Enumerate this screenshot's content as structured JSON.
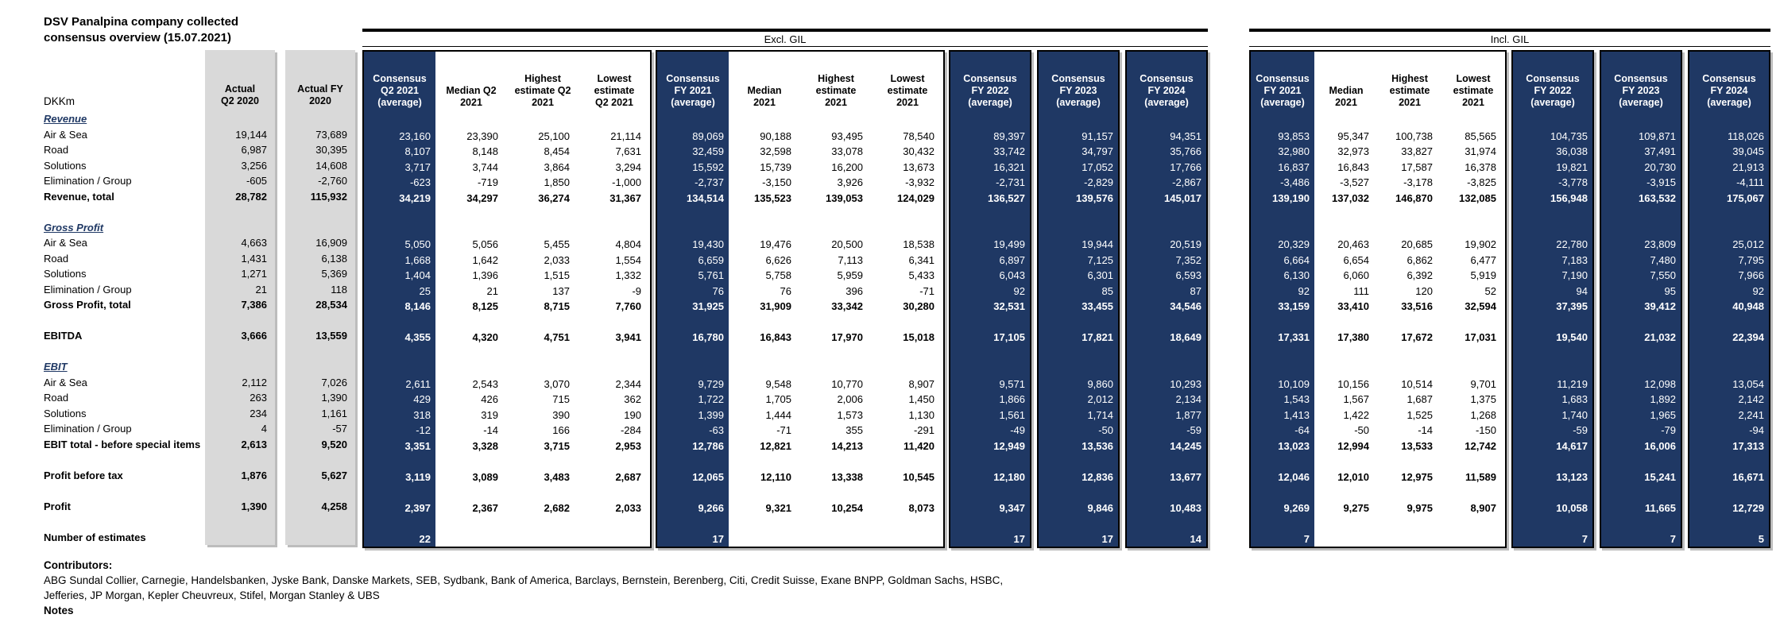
{
  "title": [
    "DSV Panalpina company collected",
    "consensus overview (15.07.2021)"
  ],
  "unit_label": "DKKm",
  "sections": {
    "excl": "Excl. GIL",
    "incl": "Incl. GIL"
  },
  "colors": {
    "navy": "#1f3864",
    "grey": "#d9d9d9"
  },
  "columns": [
    {
      "id": "actual-q2-2020",
      "header": [
        "Actual",
        "Q2 2020"
      ]
    },
    {
      "id": "actual-fy-2020",
      "header": [
        "Actual FY",
        "2020"
      ]
    },
    {
      "id": "excl-consensus-q2-2021",
      "header": [
        "Consensus",
        "Q2 2021",
        "(average)"
      ]
    },
    {
      "id": "excl-median-q2-2021",
      "header": [
        "Median Q2",
        "2021"
      ]
    },
    {
      "id": "excl-highest-estimate-q2-2021",
      "header": [
        "Highest",
        "estimate Q2",
        "2021"
      ]
    },
    {
      "id": "excl-lowest-estimate-q2-2021",
      "header": [
        "Lowest",
        "estimate",
        "Q2 2021"
      ]
    },
    {
      "id": "excl-consensus-fy-2021",
      "header": [
        "Consensus",
        "FY 2021",
        "(average)"
      ]
    },
    {
      "id": "excl-median-2021",
      "header": [
        "Median",
        "2021"
      ]
    },
    {
      "id": "excl-highest-estimate-2021",
      "header": [
        "Highest",
        "estimate",
        "2021"
      ]
    },
    {
      "id": "excl-lowest-estimate-2021",
      "header": [
        "Lowest",
        "estimate",
        "2021"
      ]
    },
    {
      "id": "excl-consensus-fy-2022",
      "header": [
        "Consensus",
        "FY 2022",
        "(average)"
      ]
    },
    {
      "id": "excl-consensus-fy-2023",
      "header": [
        "Consensus",
        "FY 2023",
        "(average)"
      ]
    },
    {
      "id": "excl-consensus-fy-2024",
      "header": [
        "Consensus",
        "FY 2024",
        "(average)"
      ]
    },
    {
      "id": "incl-consensus-fy-2021",
      "header": [
        "Consensus",
        "FY 2021",
        "(average)"
      ]
    },
    {
      "id": "incl-median-2021",
      "header": [
        "Median",
        "2021"
      ]
    },
    {
      "id": "incl-highest-estimate-2021",
      "header": [
        "Highest",
        "estimate",
        "2021"
      ]
    },
    {
      "id": "incl-lowest-estimate-2021",
      "header": [
        "Lowest",
        "estimate",
        "2021"
      ]
    },
    {
      "id": "incl-consensus-fy-2022",
      "header": [
        "Consensus",
        "FY 2022",
        "(average)"
      ]
    },
    {
      "id": "incl-consensus-fy-2023",
      "header": [
        "Consensus",
        "FY 2023",
        "(average)"
      ]
    },
    {
      "id": "incl-consensus-fy-2024",
      "header": [
        "Consensus",
        "FY 2024",
        "(average)"
      ]
    }
  ],
  "rows": [
    {
      "label": "Revenue",
      "type": "section",
      "values": []
    },
    {
      "label": "Air & Sea",
      "type": "data",
      "values": [
        "19,144",
        "73,689",
        "23,160",
        "23,390",
        "25,100",
        "21,114",
        "89,069",
        "90,188",
        "93,495",
        "78,540",
        "89,397",
        "91,157",
        "94,351",
        "93,853",
        "95,347",
        "100,738",
        "85,565",
        "104,735",
        "109,871",
        "118,026"
      ]
    },
    {
      "label": "Road",
      "type": "data",
      "values": [
        "6,987",
        "30,395",
        "8,107",
        "8,148",
        "8,454",
        "7,631",
        "32,459",
        "32,598",
        "33,078",
        "30,432",
        "33,742",
        "34,797",
        "35,766",
        "32,980",
        "32,973",
        "33,827",
        "31,974",
        "36,038",
        "37,491",
        "39,045"
      ]
    },
    {
      "label": "Solutions",
      "type": "data",
      "values": [
        "3,256",
        "14,608",
        "3,717",
        "3,744",
        "3,864",
        "3,294",
        "15,592",
        "15,739",
        "16,200",
        "13,673",
        "16,321",
        "17,052",
        "17,766",
        "16,837",
        "16,843",
        "17,587",
        "16,378",
        "19,821",
        "20,730",
        "21,913"
      ]
    },
    {
      "label": "Elimination / Group",
      "type": "data",
      "values": [
        "-605",
        "-2,760",
        "-623",
        "-719",
        "1,850",
        "-1,000",
        "-2,737",
        "-3,150",
        "3,926",
        "-3,932",
        "-2,731",
        "-2,829",
        "-2,867",
        "-3,486",
        "-3,527",
        "-3,178",
        "-3,825",
        "-3,778",
        "-3,915",
        "-4,111"
      ]
    },
    {
      "label": "Revenue, total",
      "type": "total",
      "values": [
        "28,782",
        "115,932",
        "34,219",
        "34,297",
        "36,274",
        "31,367",
        "134,514",
        "135,523",
        "139,053",
        "124,029",
        "136,527",
        "139,576",
        "145,017",
        "139,190",
        "137,032",
        "146,870",
        "132,085",
        "156,948",
        "163,532",
        "175,067"
      ]
    },
    {
      "label": "",
      "type": "blank",
      "values": []
    },
    {
      "label": "Gross Profit",
      "type": "section",
      "values": []
    },
    {
      "label": "Air & Sea",
      "type": "data",
      "values": [
        "4,663",
        "16,909",
        "5,050",
        "5,056",
        "5,455",
        "4,804",
        "19,430",
        "19,476",
        "20,500",
        "18,538",
        "19,499",
        "19,944",
        "20,519",
        "20,329",
        "20,463",
        "20,685",
        "19,902",
        "22,780",
        "23,809",
        "25,012"
      ]
    },
    {
      "label": "Road",
      "type": "data",
      "values": [
        "1,431",
        "6,138",
        "1,668",
        "1,642",
        "2,033",
        "1,554",
        "6,659",
        "6,626",
        "7,113",
        "6,341",
        "6,897",
        "7,125",
        "7,352",
        "6,664",
        "6,654",
        "6,862",
        "6,477",
        "7,183",
        "7,480",
        "7,795"
      ]
    },
    {
      "label": "Solutions",
      "type": "data",
      "values": [
        "1,271",
        "5,369",
        "1,404",
        "1,396",
        "1,515",
        "1,332",
        "5,761",
        "5,758",
        "5,959",
        "5,433",
        "6,043",
        "6,301",
        "6,593",
        "6,130",
        "6,060",
        "6,392",
        "5,919",
        "7,190",
        "7,550",
        "7,966"
      ]
    },
    {
      "label": "Elimination / Group",
      "type": "data",
      "values": [
        "21",
        "118",
        "25",
        "21",
        "137",
        "-9",
        "76",
        "76",
        "396",
        "-71",
        "92",
        "85",
        "87",
        "92",
        "111",
        "120",
        "52",
        "94",
        "95",
        "92"
      ]
    },
    {
      "label": "Gross Profit, total",
      "type": "total",
      "values": [
        "7,386",
        "28,534",
        "8,146",
        "8,125",
        "8,715",
        "7,760",
        "31,925",
        "31,909",
        "33,342",
        "30,280",
        "32,531",
        "33,455",
        "34,546",
        "33,159",
        "33,410",
        "33,516",
        "32,594",
        "37,395",
        "39,412",
        "40,948"
      ]
    },
    {
      "label": "",
      "type": "blank",
      "values": []
    },
    {
      "label": "EBITDA",
      "type": "total",
      "values": [
        "3,666",
        "13,559",
        "4,355",
        "4,320",
        "4,751",
        "3,941",
        "16,780",
        "16,843",
        "17,970",
        "15,018",
        "17,105",
        "17,821",
        "18,649",
        "17,331",
        "17,380",
        "17,672",
        "17,031",
        "19,540",
        "21,032",
        "22,394"
      ]
    },
    {
      "label": "",
      "type": "blank",
      "values": []
    },
    {
      "label": "EBIT",
      "type": "section",
      "values": []
    },
    {
      "label": "Air & Sea",
      "type": "data",
      "values": [
        "2,112",
        "7,026",
        "2,611",
        "2,543",
        "3,070",
        "2,344",
        "9,729",
        "9,548",
        "10,770",
        "8,907",
        "9,571",
        "9,860",
        "10,293",
        "10,109",
        "10,156",
        "10,514",
        "9,701",
        "11,219",
        "12,098",
        "13,054"
      ]
    },
    {
      "label": "Road",
      "type": "data",
      "values": [
        "263",
        "1,390",
        "429",
        "426",
        "715",
        "362",
        "1,722",
        "1,705",
        "2,006",
        "1,450",
        "1,866",
        "2,012",
        "2,134",
        "1,543",
        "1,567",
        "1,687",
        "1,375",
        "1,683",
        "1,892",
        "2,142"
      ]
    },
    {
      "label": "Solutions",
      "type": "data",
      "values": [
        "234",
        "1,161",
        "318",
        "319",
        "390",
        "190",
        "1,399",
        "1,444",
        "1,573",
        "1,130",
        "1,561",
        "1,714",
        "1,877",
        "1,413",
        "1,422",
        "1,525",
        "1,268",
        "1,740",
        "1,965",
        "2,241"
      ]
    },
    {
      "label": "Elimination / Group",
      "type": "data",
      "values": [
        "4",
        "-57",
        "-12",
        "-14",
        "166",
        "-284",
        "-63",
        "-71",
        "355",
        "-291",
        "-49",
        "-50",
        "-59",
        "-64",
        "-50",
        "-14",
        "-150",
        "-59",
        "-79",
        "-94"
      ]
    },
    {
      "label": "EBIT total - before special items",
      "type": "total",
      "values": [
        "2,613",
        "9,520",
        "3,351",
        "3,328",
        "3,715",
        "2,953",
        "12,786",
        "12,821",
        "14,213",
        "11,420",
        "12,949",
        "13,536",
        "14,245",
        "13,023",
        "12,994",
        "13,533",
        "12,742",
        "14,617",
        "16,006",
        "17,313"
      ]
    },
    {
      "label": "",
      "type": "blank",
      "values": []
    },
    {
      "label": "Profit before tax",
      "type": "total",
      "values": [
        "1,876",
        "5,627",
        "3,119",
        "3,089",
        "3,483",
        "2,687",
        "12,065",
        "12,110",
        "13,338",
        "10,545",
        "12,180",
        "12,836",
        "13,677",
        "12,046",
        "12,010",
        "12,975",
        "11,589",
        "13,123",
        "15,241",
        "16,671"
      ]
    },
    {
      "label": "",
      "type": "blank",
      "values": []
    },
    {
      "label": "Profit",
      "type": "total",
      "values": [
        "1,390",
        "4,258",
        "2,397",
        "2,367",
        "2,682",
        "2,033",
        "9,266",
        "9,321",
        "10,254",
        "8,073",
        "9,347",
        "9,846",
        "10,483",
        "9,269",
        "9,275",
        "9,975",
        "8,907",
        "10,058",
        "11,665",
        "12,729"
      ]
    },
    {
      "label": "",
      "type": "blank",
      "values": []
    },
    {
      "label": "Number of estimates",
      "type": "total",
      "values": [
        "",
        "",
        "22",
        "",
        "",
        "",
        "17",
        "",
        "",
        "",
        "17",
        "17",
        "14",
        "7",
        "",
        "",
        "",
        "7",
        "7",
        "5"
      ]
    }
  ],
  "footer": {
    "contributors_label": "Contributors:",
    "contributors": [
      "ABG Sundal Collier, Carnegie, Handelsbanken, Jyske Bank, Danske Markets, SEB, Sydbank, Bank of America, Barclays, Bernstein, Berenberg, Citi, Credit Suisse, Exane BNPP, Goldman Sachs, HSBC,",
      "Jefferies, JP Morgan, Kepler Cheuvreux, Stifel, Morgan Stanley & UBS"
    ],
    "notes_label": "Notes"
  }
}
